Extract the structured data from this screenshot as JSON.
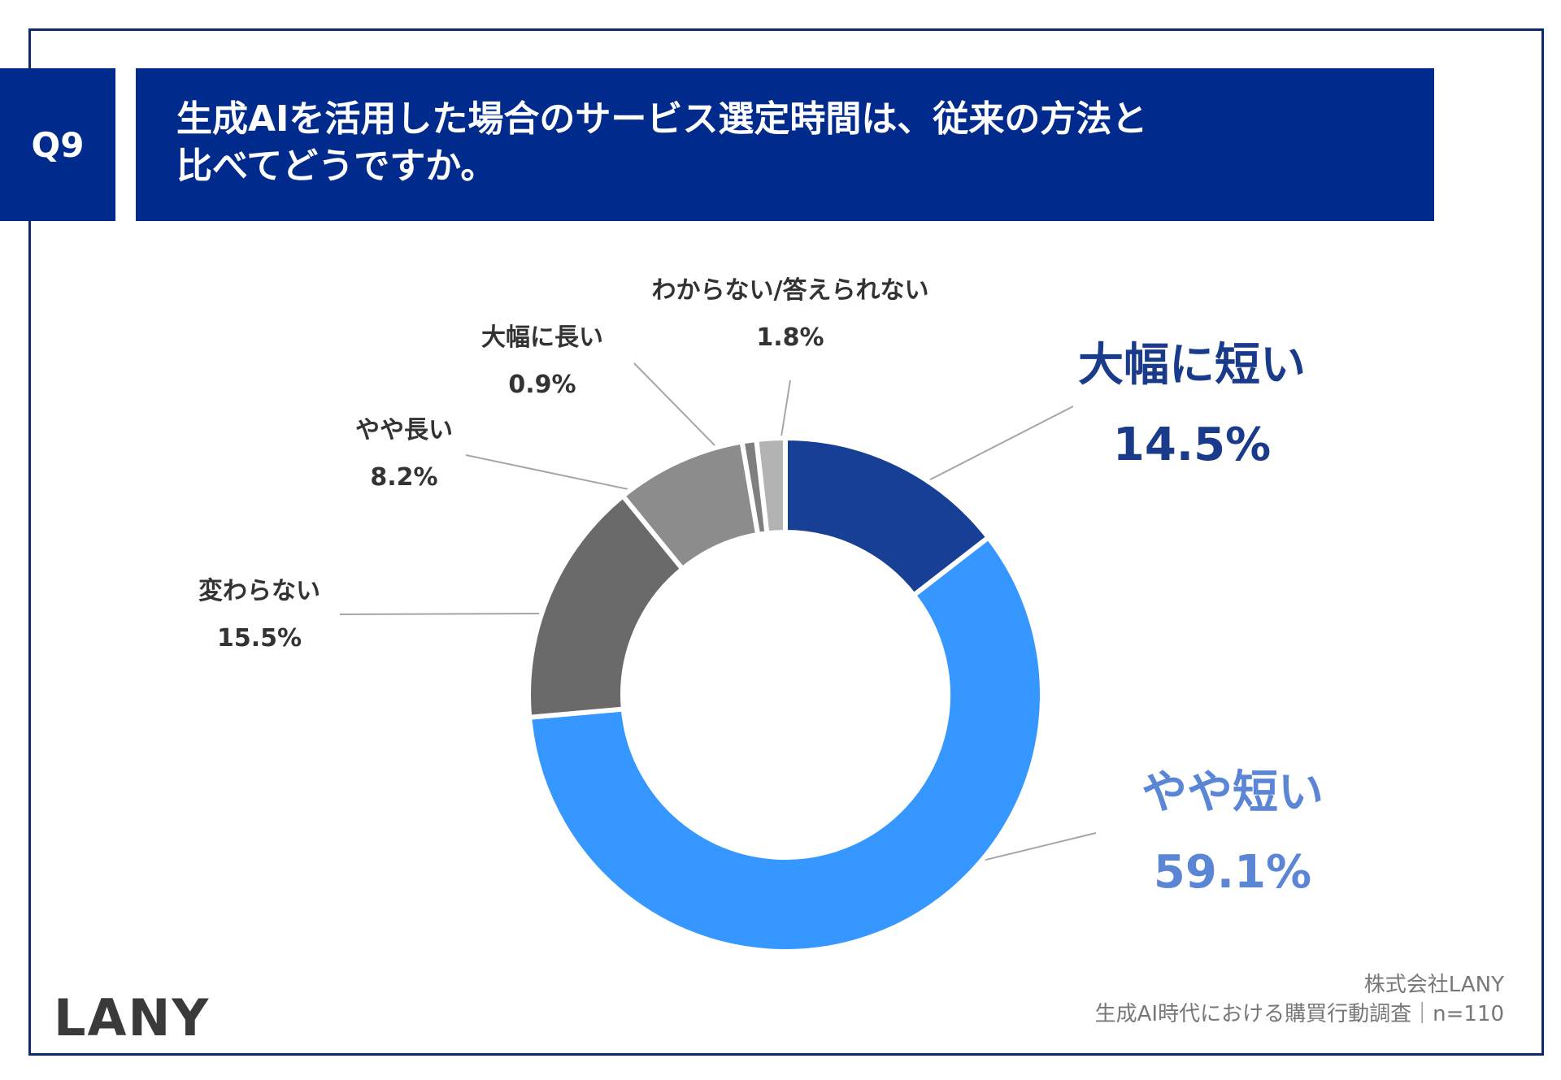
{
  "header": {
    "badge": "Q9",
    "title_line1": "生成AIを活用した場合のサービス選定時間は、従来の方法と",
    "title_line2": "比べてどうですか。"
  },
  "chart_data": {
    "type": "pie",
    "donut": true,
    "slices": [
      {
        "label": "大幅に短い",
        "value": 14.5,
        "value_label": "14.5%",
        "color": "#163f95"
      },
      {
        "label": "やや短い",
        "value": 59.1,
        "value_label": "59.1%",
        "color": "#3597ff"
      },
      {
        "label": "変わらない",
        "value": 15.5,
        "value_label": "15.5%",
        "color": "#6a6a6a"
      },
      {
        "label": "やや長い",
        "value": 8.2,
        "value_label": "8.2%",
        "color": "#8c8c8c"
      },
      {
        "label": "大幅に長い",
        "value": 0.9,
        "value_label": "0.9%",
        "color": "#7f7f7f"
      },
      {
        "label": "わからない/答えられない",
        "value": 1.8,
        "value_label": "1.8%",
        "color": "#b3b3b3"
      }
    ],
    "label_colors": {
      "大幅に短い": "#1a3a8a",
      "やや短い": "#5b86d6",
      "other": "#333333"
    }
  },
  "footer": {
    "logo": "LANY",
    "company": "株式会社LANY",
    "source": "生成AI時代における購買行動調査｜n=110"
  }
}
